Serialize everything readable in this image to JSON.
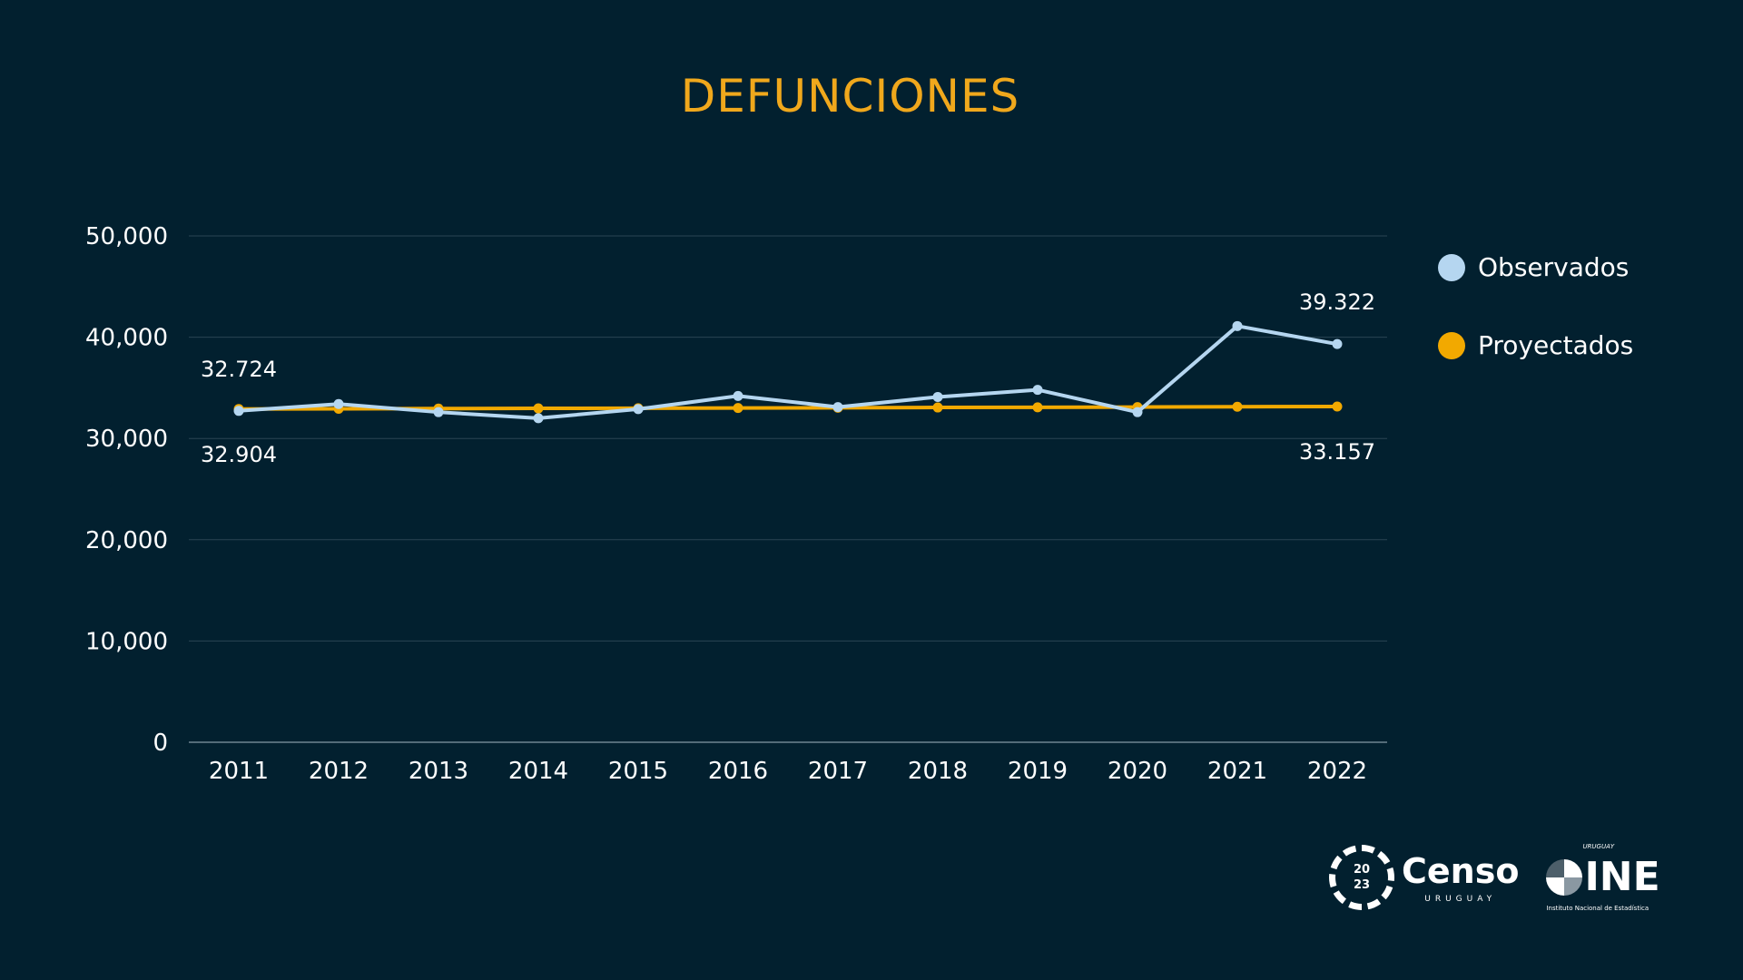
{
  "title": "DEFUNCIONES",
  "legend": [
    {
      "label": "Observados",
      "color": "#b5d6f0"
    },
    {
      "label": "Proyectados",
      "color": "#f2a900"
    }
  ],
  "logos": {
    "censo": {
      "year_top": "20",
      "year_bottom": "23",
      "name": "Censo",
      "country": "URUGUAY"
    },
    "ine": {
      "country": "URUGUAY",
      "name": "INE",
      "full_name": "Instituto Nacional de Estadística"
    }
  },
  "chart_data": {
    "type": "line",
    "title": "DEFUNCIONES",
    "xlabel": "",
    "ylabel": "",
    "ylim": [
      0,
      50000
    ],
    "yticks": [
      0,
      10000,
      20000,
      30000,
      40000,
      50000
    ],
    "ytick_labels": [
      "0",
      "10,000",
      "20,000",
      "30,000",
      "40,000",
      "50,000"
    ],
    "grid": true,
    "legend_position": "right",
    "categories": [
      "2011",
      "2012",
      "2013",
      "2014",
      "2015",
      "2016",
      "2017",
      "2018",
      "2019",
      "2020",
      "2021",
      "2022"
    ],
    "series": [
      {
        "name": "Observados",
        "color": "#b5d6f0",
        "values": [
          32724,
          33400,
          32600,
          32000,
          32900,
          34200,
          33100,
          34100,
          34800,
          32600,
          41100,
          39322
        ]
      },
      {
        "name": "Proyectados",
        "color": "#f2a900",
        "values": [
          32904,
          32930,
          32950,
          32970,
          32990,
          33010,
          33030,
          33060,
          33080,
          33100,
          33130,
          33157
        ]
      }
    ],
    "annotations": [
      {
        "text": "32.724",
        "series": "Observados",
        "category": "2011",
        "position": "above"
      },
      {
        "text": "32.904",
        "series": "Proyectados",
        "category": "2011",
        "position": "below"
      },
      {
        "text": "39.322",
        "series": "Observados",
        "category": "2022",
        "position": "above"
      },
      {
        "text": "33.157",
        "series": "Proyectados",
        "category": "2022",
        "position": "below"
      }
    ]
  }
}
